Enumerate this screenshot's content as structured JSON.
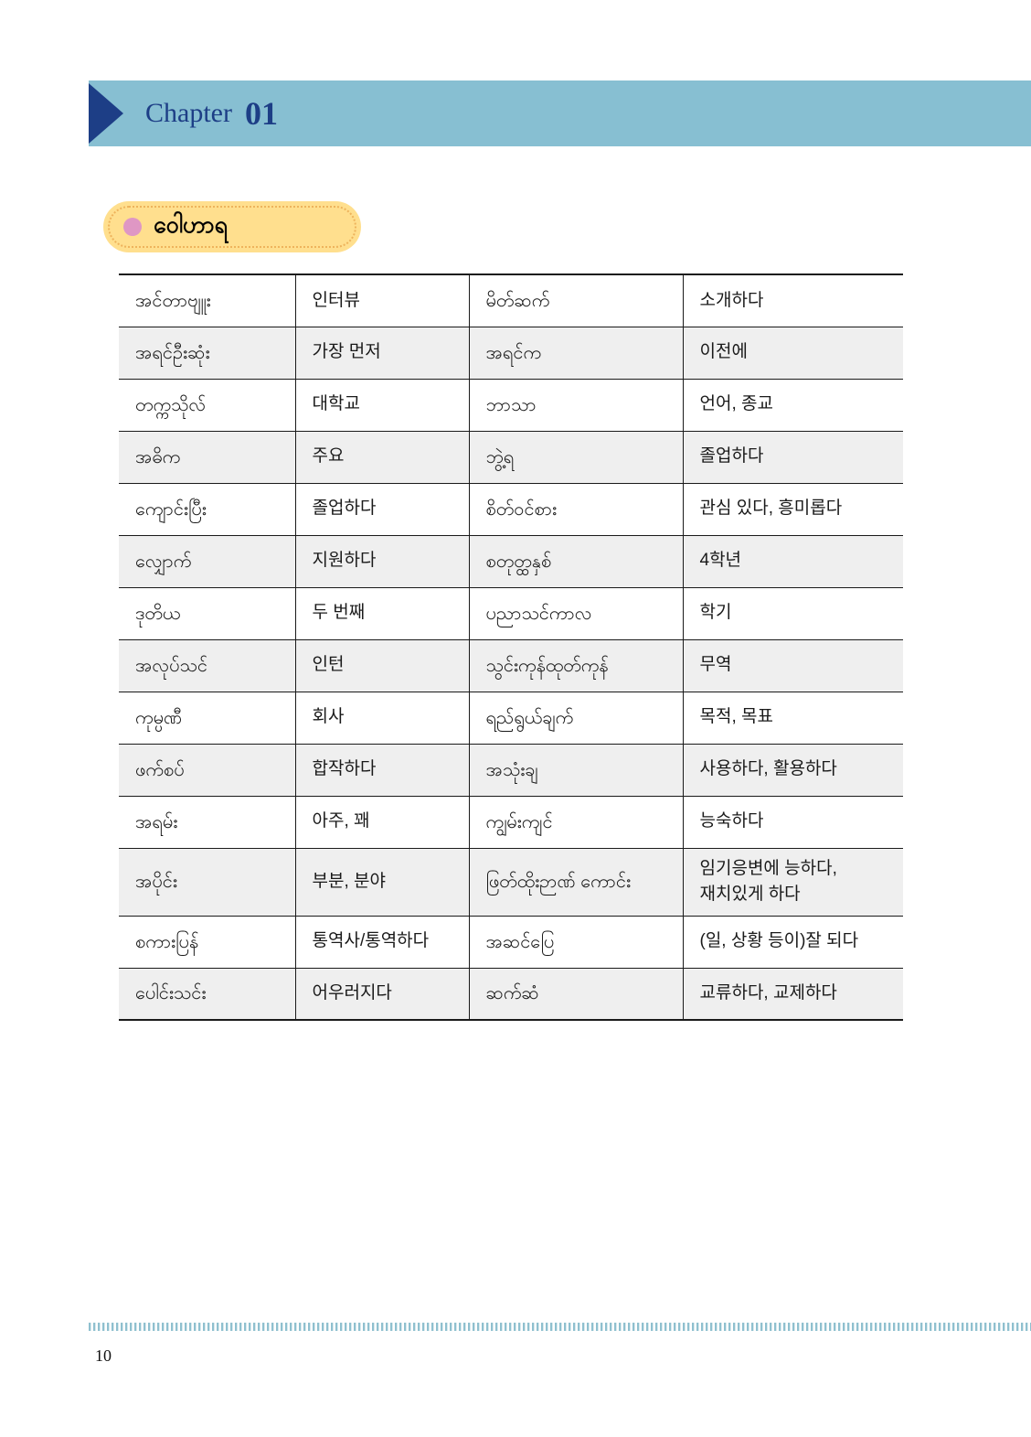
{
  "header": {
    "chapter_label": "Chapter",
    "chapter_number": "01"
  },
  "section": {
    "title": "ဝေါဟာရ"
  },
  "vocab_table": {
    "columns": [
      "burmese-term",
      "korean-meaning",
      "burmese-term-2",
      "korean-meaning-2"
    ],
    "rows": [
      [
        "အင်တာဗျူး",
        "인터뷰",
        "မိတ်ဆက်",
        "소개하다"
      ],
      [
        "အရင်ဦးဆုံး",
        "가장 먼저",
        "အရင်က",
        "이전에"
      ],
      [
        "တက္ကသိုလ်",
        "대학교",
        "ဘာသာ",
        "언어, 종교"
      ],
      [
        "အဓိက",
        "주요",
        "ဘွဲ့ရ",
        "졸업하다"
      ],
      [
        "ကျောင်းပြီး",
        "졸업하다",
        "စိတ်ဝင်စား",
        "관심 있다, 흥미롭다"
      ],
      [
        "လျှောက်",
        "지원하다",
        "စတုတ္ထနှစ်",
        "4학년"
      ],
      [
        "ဒုတိယ",
        "두 번째",
        "ပညာသင်ကာလ",
        "학기"
      ],
      [
        "အလုပ်သင်",
        "인턴",
        "သွင်းကုန်ထုတ်ကုန်",
        "무역"
      ],
      [
        "ကုမ္ပဏီ",
        "회사",
        "ရည်ရွယ်ချက်",
        "목적, 목표"
      ],
      [
        "ဖက်စပ်",
        "합작하다",
        "အသုံးချ",
        "사용하다, 활용하다"
      ],
      [
        "အရမ်း",
        "아주, 꽤",
        "ကျွမ်းကျင်",
        "능숙하다"
      ],
      [
        "အပိုင်း",
        "부분, 분야",
        "ဖြတ်ထိုးဉာဏ် ကောင်း",
        "임기응변에 능하다,\n재치있게 하다"
      ],
      [
        "စကားပြန်",
        "통역사/통역하다",
        "အဆင်ပြေ",
        "(일, 상황 등이)잘 되다"
      ],
      [
        "ပေါင်းသင်း",
        "어우러지다",
        "ဆက်ဆံ",
        "교류하다, 교제하다"
      ]
    ]
  },
  "footer": {
    "page_number": "10"
  },
  "colors": {
    "header_bar": "#87bfd2",
    "navy": "#1d3e86",
    "badge_fill": "#ffdf8e",
    "badge_dotted_border": "#eeb35c",
    "badge_dot": "#df97c4",
    "table_alt_row": "#efefef",
    "table_border": "#1a1a1a",
    "dotted_line": "#8fc0cf"
  }
}
